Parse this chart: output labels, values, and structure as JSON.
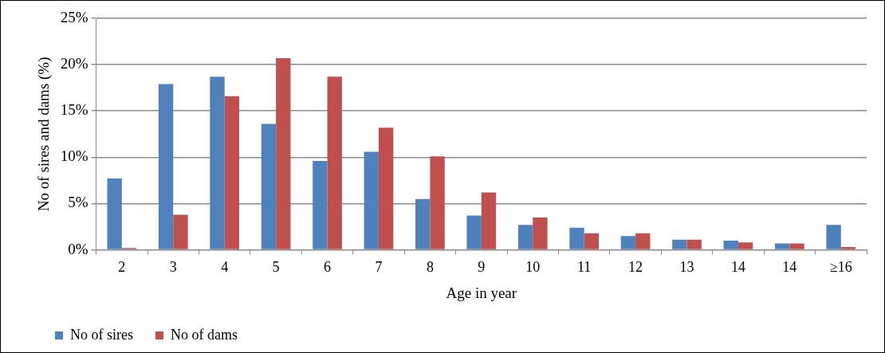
{
  "chart_data": {
    "type": "bar",
    "xlabel": "Age in year",
    "ylabel": "No of sires and dams (%)",
    "categories": [
      "2",
      "3",
      "4",
      "5",
      "6",
      "7",
      "8",
      "9",
      "10",
      "11",
      "12",
      "13",
      "14",
      "14",
      "≥16"
    ],
    "series": [
      {
        "name": "No of sires",
        "color": "#4f81bd",
        "values": [
          7.7,
          17.9,
          18.7,
          13.6,
          9.6,
          10.6,
          5.5,
          3.7,
          2.7,
          2.4,
          1.5,
          1.1,
          1.0,
          0.7,
          2.7
        ]
      },
      {
        "name": "No of dams",
        "color": "#c0504d",
        "values": [
          0.2,
          3.8,
          16.6,
          20.7,
          18.7,
          13.2,
          10.1,
          6.2,
          3.5,
          1.8,
          1.8,
          1.1,
          0.8,
          0.7,
          0.3
        ]
      }
    ],
    "ylim": [
      0,
      25
    ],
    "yticks": [
      {
        "value": 0,
        "label": "0%"
      },
      {
        "value": 5,
        "label": "5%"
      },
      {
        "value": 10,
        "label": "10%"
      },
      {
        "value": 15,
        "label": "15%"
      },
      {
        "value": 20,
        "label": "20%"
      },
      {
        "value": 25,
        "label": "25%"
      }
    ],
    "grid": "y",
    "legend": "bottom left"
  }
}
